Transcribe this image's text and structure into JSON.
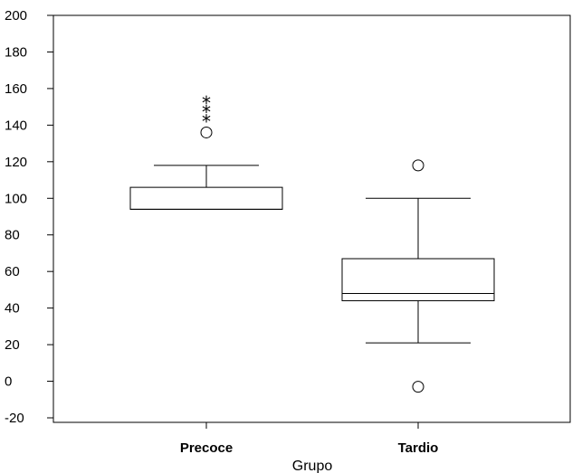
{
  "chart_data": {
    "type": "boxplot",
    "title": "",
    "xlabel": "Grupo",
    "ylabel": "",
    "ylim": [
      -20,
      200
    ],
    "y_ticks": [
      -20,
      0,
      20,
      40,
      60,
      80,
      100,
      120,
      140,
      160,
      180,
      200
    ],
    "y_tick_labels": [
      "-20",
      "0",
      "20",
      "40",
      "60",
      "80",
      "100",
      "120",
      "140",
      "160",
      "180",
      "200"
    ],
    "categories": [
      "Precoce",
      "Tardio"
    ],
    "grid": false,
    "boxes": [
      {
        "category": "Precoce",
        "whisker_low": 94,
        "q1": 94,
        "median": 94,
        "q3": 106,
        "whisker_high": 118,
        "outliers": [
          136
        ],
        "extremes": [
          144,
          149,
          154
        ]
      },
      {
        "category": "Tardio",
        "whisker_low": 21,
        "q1": 44,
        "median": 48,
        "q3": 67,
        "whisker_high": 100,
        "outliers": [
          118,
          -3
        ],
        "extremes": []
      }
    ]
  }
}
